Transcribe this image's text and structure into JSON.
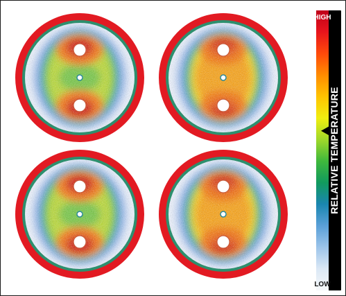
{
  "legend": {
    "high_label": "HIGH",
    "low_label": "LOW",
    "title": "RELATIVE TEMPERATURE",
    "indicator_level": 0.57,
    "gradient_colors": [
      "#c0001a",
      "#e8141c",
      "#ff4a0a",
      "#ff8c00",
      "#ffc400",
      "#f0ee10",
      "#9fd82a",
      "#3fb83c",
      "#119a5e",
      "#1a86b0",
      "#5aa0d8",
      "#9cc4ea",
      "#dbe8f5",
      "#f6f8fa"
    ]
  },
  "discs": {
    "count": 4,
    "outer_ring_color": "#e21a22",
    "thermal_colors": [
      "#cf2a1f",
      "#f0781a",
      "#f7d325",
      "#b9d63a",
      "#6cc24c",
      "#3b8fd6",
      "#a9c2ea",
      "#e8eef7"
    ],
    "hole_color": "#ffffff"
  }
}
